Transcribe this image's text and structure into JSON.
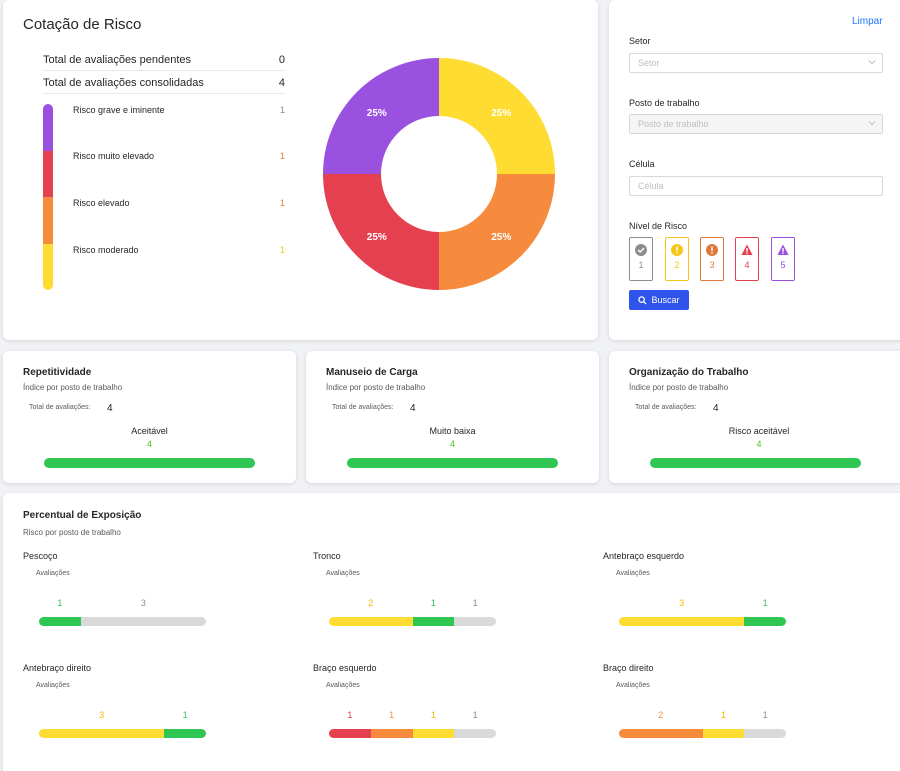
{
  "risk": {
    "title": "Cotação de Risco",
    "summary": [
      {
        "label": "Total de avaliações pendentes",
        "value": "0"
      },
      {
        "label": "Total de avaliações consolidadas",
        "value": "4"
      }
    ],
    "levels": [
      {
        "label": "Risco grave e iminente",
        "value": "1",
        "color": "#9b51e0",
        "valueColor": "#8c8c8c"
      },
      {
        "label": "Risco muito elevado",
        "value": "1",
        "color": "#e5404f",
        "valueColor": "#e07a3c"
      },
      {
        "label": "Risco elevado",
        "value": "1",
        "color": "#f78b3d",
        "valueColor": "#e07a3c"
      },
      {
        "label": "Risco moderado",
        "value": "1",
        "color": "#ffdc32",
        "valueColor": "#f5c518"
      }
    ],
    "donut": [
      {
        "label": "25%",
        "value": 25,
        "color": "#ffdc32"
      },
      {
        "label": "25%",
        "value": 25,
        "color": "#f78b3d"
      },
      {
        "label": "25%",
        "value": 25,
        "color": "#e5404f"
      },
      {
        "label": "25%",
        "value": 25,
        "color": "#9b51e0"
      }
    ]
  },
  "filters": {
    "clear": "Limpar",
    "setor_label": "Setor",
    "setor_placeholder": "Setor",
    "posto_label": "Posto de trabalho",
    "posto_placeholder": "Posto de trabalho",
    "celula_label": "Célula",
    "celula_placeholder": "Célula",
    "nivel_label": "Nível de Risco",
    "niveis": [
      {
        "num": "1",
        "color": "#8c8c8c",
        "icon": "check-icon"
      },
      {
        "num": "2",
        "color": "#f5c518",
        "icon": "exclamation-circle-icon"
      },
      {
        "num": "3",
        "color": "#e07a3c",
        "icon": "exclamation-circle-icon"
      },
      {
        "num": "4",
        "color": "#e5404f",
        "icon": "warning-triangle-icon"
      },
      {
        "num": "5",
        "color": "#9b51e0",
        "icon": "warning-triangle-icon"
      }
    ],
    "search": "Buscar"
  },
  "metrics": [
    {
      "title": "Repetitividade",
      "subtitle": "Índice por posto de trabalho",
      "total_label": "Total de avaliações:",
      "total": "4",
      "category": "Aceitável",
      "count": "4"
    },
    {
      "title": "Manuseio de Carga",
      "subtitle": "Índice por posto de trabalho",
      "total_label": "Total de avaliações:",
      "total": "4",
      "category": "Muito baixa",
      "count": "4"
    },
    {
      "title": "Organização do Trabalho",
      "subtitle": "Índice por posto de trabalho",
      "total_label": "Total de avaliações:",
      "total": "4",
      "category": "Risco aceitável",
      "count": "4"
    }
  ],
  "exposure": {
    "title": "Percentual de Exposição",
    "subtitle": "Risco por posto de trabalho",
    "avaliacoes": "Avaliações",
    "parts": [
      {
        "name": "Pescoço",
        "segments": [
          {
            "value": 1,
            "color": "#2fc653"
          },
          {
            "value": 3,
            "color": "#d9d9d9"
          }
        ]
      },
      {
        "name": "Tronco",
        "segments": [
          {
            "value": 2,
            "color": "#ffdc32"
          },
          {
            "value": 1,
            "color": "#2fc653"
          },
          {
            "value": 1,
            "color": "#d9d9d9"
          }
        ]
      },
      {
        "name": "Antebraço esquerdo",
        "segments": [
          {
            "value": 3,
            "color": "#ffdc32"
          },
          {
            "value": 1,
            "color": "#2fc653"
          }
        ]
      },
      {
        "name": "Antebraço direito",
        "segments": [
          {
            "value": 3,
            "color": "#ffdc32"
          },
          {
            "value": 1,
            "color": "#2fc653"
          }
        ]
      },
      {
        "name": "Braço esquerdo",
        "segments": [
          {
            "value": 1,
            "color": "#e5404f"
          },
          {
            "value": 1,
            "color": "#f78b3d"
          },
          {
            "value": 1,
            "color": "#ffdc32"
          },
          {
            "value": 1,
            "color": "#d9d9d9"
          }
        ]
      },
      {
        "name": "Braço direito",
        "segments": [
          {
            "value": 2,
            "color": "#f78b3d"
          },
          {
            "value": 1,
            "color": "#ffdc32"
          },
          {
            "value": 1,
            "color": "#d9d9d9"
          }
        ]
      }
    ]
  }
}
